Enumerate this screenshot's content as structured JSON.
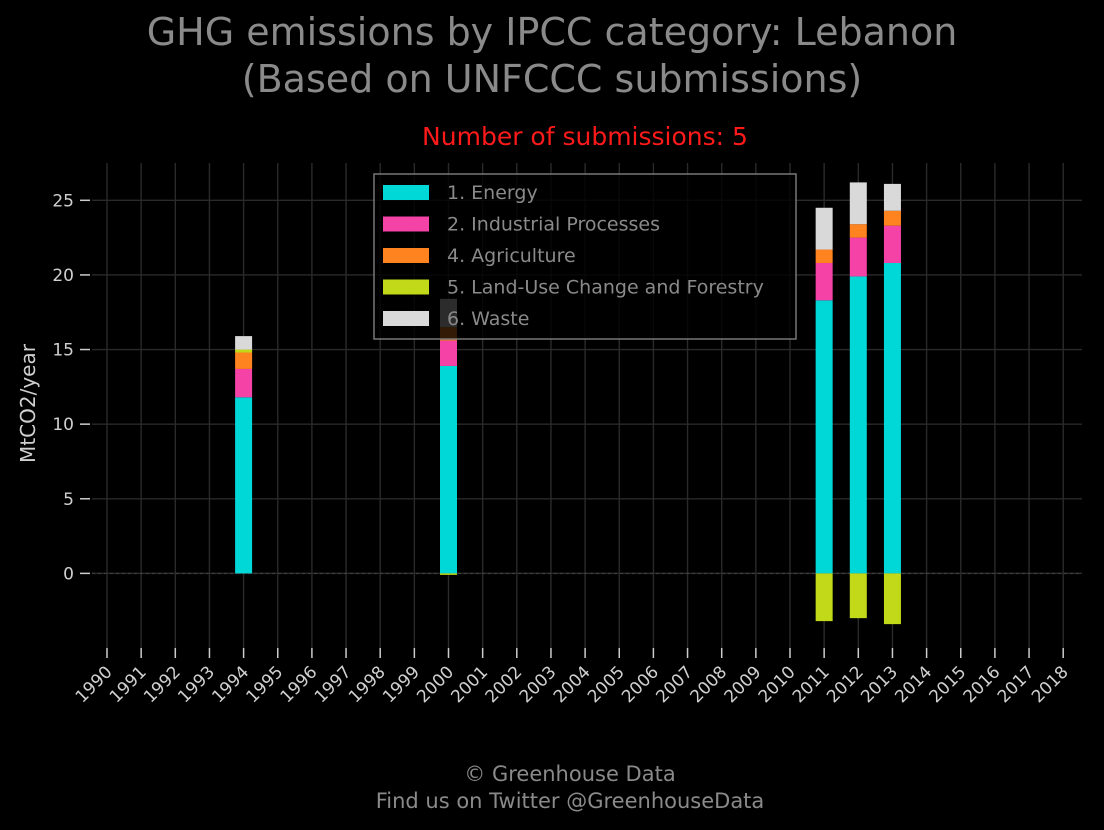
{
  "title_line1": "GHG emissions by IPCC category: Lebanon",
  "title_line2": "(Based on UNFCCC submissions)",
  "subtitle": "Number of submissions: 5",
  "footer_line1": "© Greenhouse Data",
  "footer_line2": "Find us on Twitter @GreenhouseData",
  "chart_data": {
    "type": "bar",
    "stacked": true,
    "ylabel": "MtCO2/year",
    "xlabel": "",
    "ylim": [
      -5,
      27.5
    ],
    "yticks": [
      0,
      5,
      10,
      15,
      20,
      25
    ],
    "grid": true,
    "legend_position": "top-center",
    "categories": [
      "1990",
      "1991",
      "1992",
      "1993",
      "1994",
      "1995",
      "1996",
      "1997",
      "1998",
      "1999",
      "2000",
      "2001",
      "2002",
      "2003",
      "2004",
      "2005",
      "2006",
      "2007",
      "2008",
      "2009",
      "2010",
      "2011",
      "2012",
      "2013",
      "2014",
      "2015",
      "2016",
      "2017",
      "2018"
    ],
    "series": [
      {
        "name": "1. Energy",
        "color": "#00d7d7",
        "values": {
          "1994": 11.8,
          "2000": 13.9,
          "2011": 18.3,
          "2012": 19.9,
          "2013": 20.8
        }
      },
      {
        "name": "2. Industrial Processes",
        "color": "#f542a7",
        "values": {
          "1994": 1.9,
          "2000": 1.7,
          "2011": 2.5,
          "2012": 2.6,
          "2013": 2.5
        }
      },
      {
        "name": "4. Agriculture",
        "color": "#ff8420",
        "values": {
          "1994": 1.1,
          "2000": 0.9,
          "2011": 0.9,
          "2012": 0.9,
          "2013": 1.0
        }
      },
      {
        "name": "5. Land-Use Change and Forestry",
        "color": "#c2d91a",
        "values": {
          "1994": 0.2,
          "2000": -0.1,
          "2011": -3.2,
          "2012": -3.0,
          "2013": -3.4
        }
      },
      {
        "name": "6. Waste",
        "color": "#d9d9d9",
        "values": {
          "1994": 0.9,
          "2000": 1.9,
          "2011": 2.8,
          "2012": 2.8,
          "2013": 1.8
        }
      }
    ]
  }
}
